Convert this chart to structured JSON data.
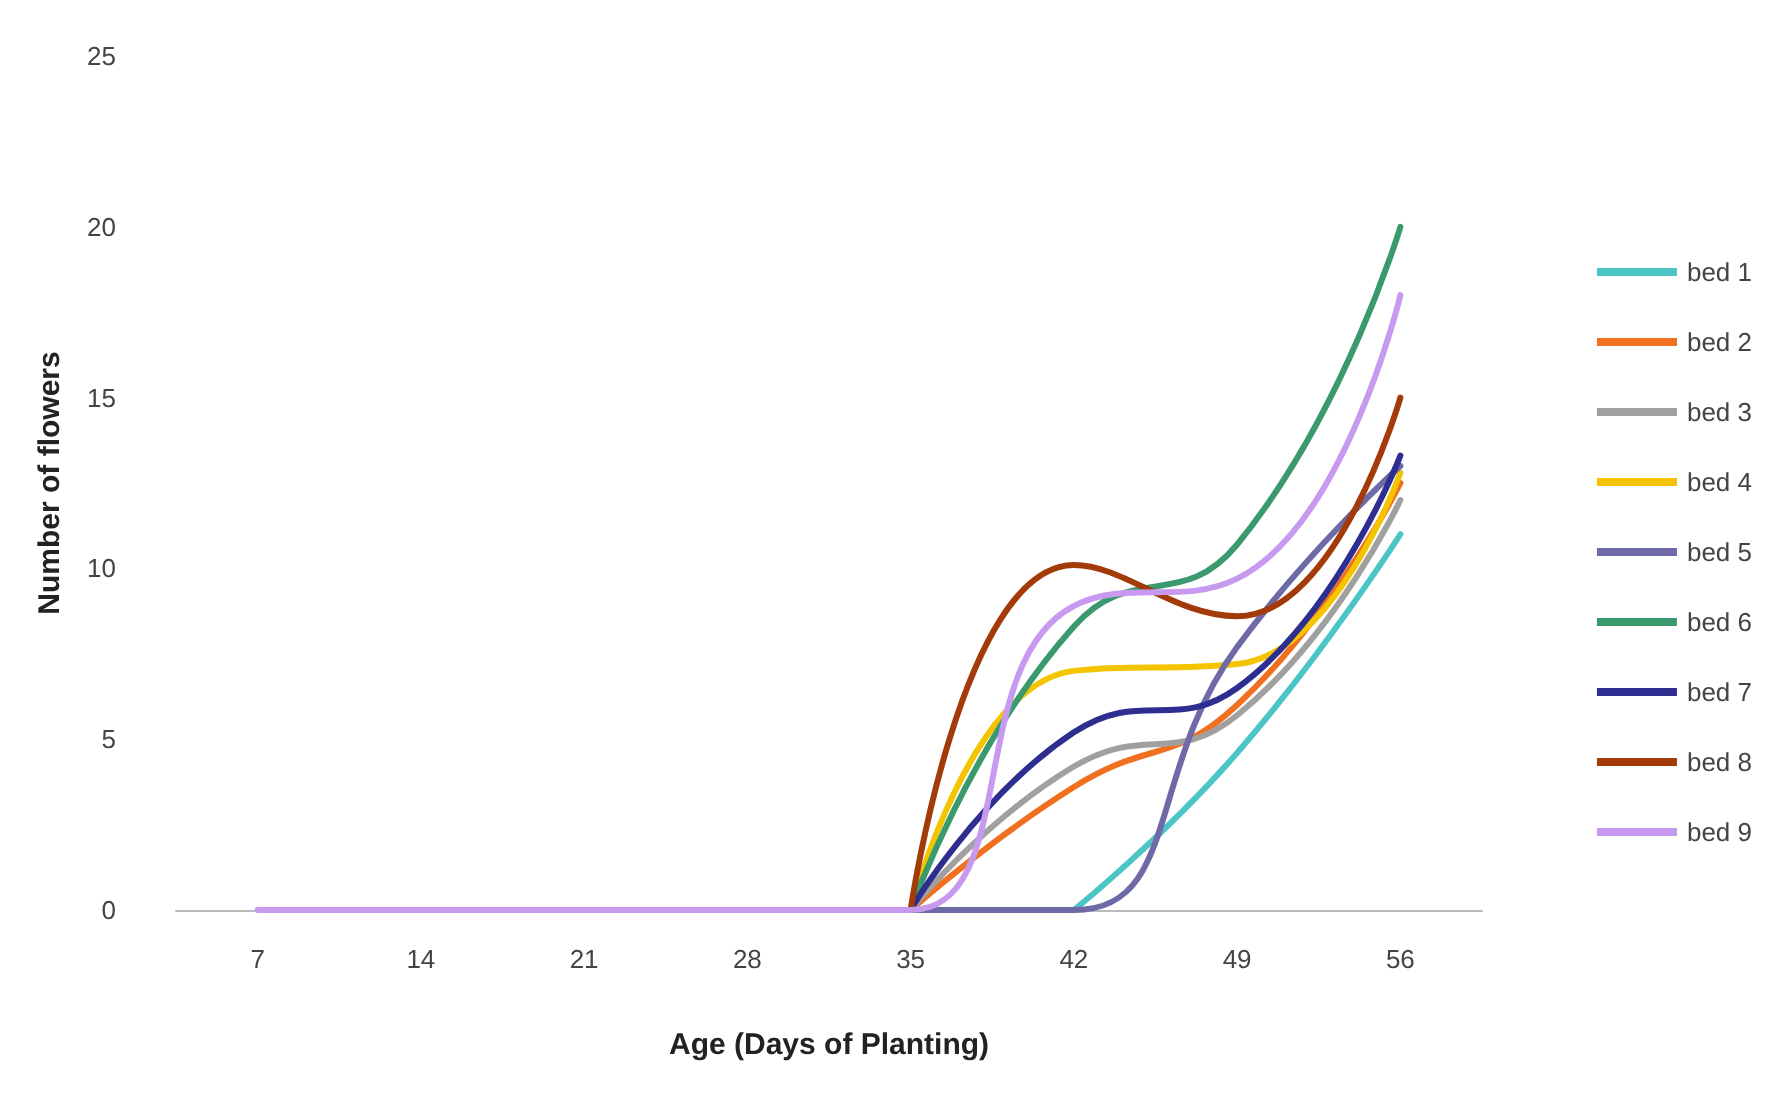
{
  "chart_data": {
    "type": "line",
    "xlabel": "Age (Days of Planting)",
    "ylabel": "Number of flowers",
    "categories": [
      "7",
      "14",
      "21",
      "28",
      "35",
      "42",
      "49",
      "56"
    ],
    "ylim": [
      0,
      25
    ],
    "yticks": [
      0,
      5,
      10,
      15,
      20,
      25
    ],
    "grid": false,
    "legend": "right",
    "marker": "none",
    "line_style": "solid",
    "series": [
      {
        "name": "bed 1",
        "color": "#4bc5c5",
        "values": [
          null,
          null,
          null,
          null,
          null,
          0,
          4.6,
          11
        ]
      },
      {
        "name": "bed 2",
        "color": "#f07020",
        "values": [
          null,
          null,
          null,
          null,
          0,
          3.6,
          6,
          12.5
        ]
      },
      {
        "name": "bed 3",
        "color": "#a0a0a0",
        "values": [
          null,
          null,
          null,
          null,
          0,
          4.2,
          5.7,
          12
        ]
      },
      {
        "name": "bed 4",
        "color": "#f5c400",
        "values": [
          null,
          null,
          null,
          null,
          0,
          7,
          7.2,
          12.8
        ]
      },
      {
        "name": "bed 5",
        "color": "#6e6aa8",
        "values": [
          null,
          null,
          null,
          null,
          0,
          0,
          7.7,
          13
        ]
      },
      {
        "name": "bed 6",
        "color": "#3a9a6e",
        "values": [
          null,
          null,
          null,
          null,
          0,
          8.3,
          10.7,
          20
        ]
      },
      {
        "name": "bed 7",
        "color": "#2e2e90",
        "values": [
          null,
          null,
          null,
          null,
          0,
          5.2,
          6.5,
          13.3
        ]
      },
      {
        "name": "bed 8",
        "color": "#a33a0a",
        "values": [
          null,
          null,
          null,
          null,
          0,
          10.1,
          8.6,
          15
        ]
      },
      {
        "name": "bed 9",
        "color": "#c79af0",
        "values": [
          0,
          0,
          0,
          0,
          0,
          8.9,
          9.7,
          18
        ]
      }
    ]
  }
}
